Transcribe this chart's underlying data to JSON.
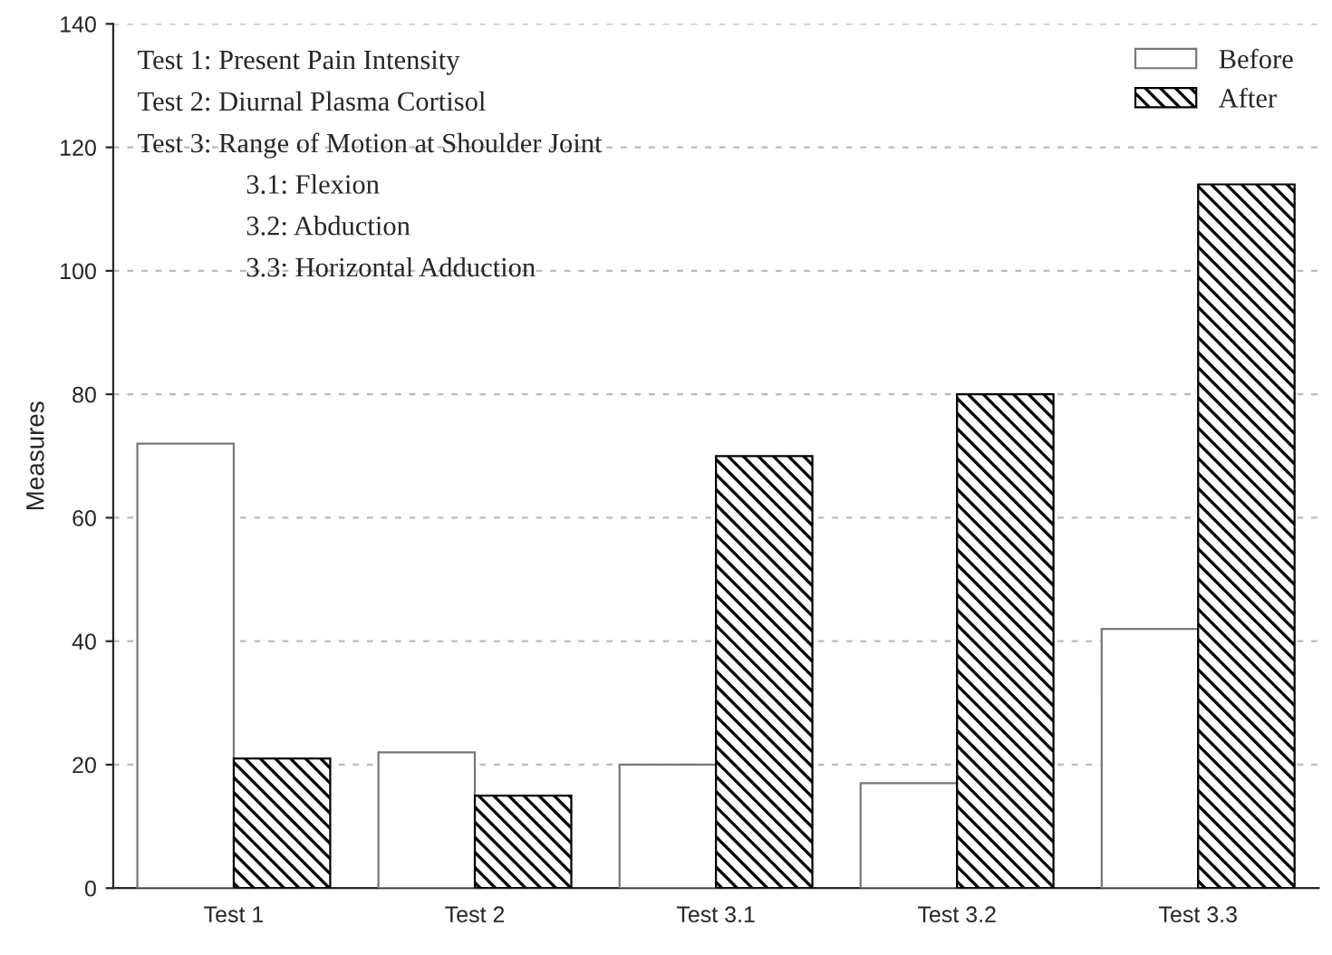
{
  "chart_data": {
    "type": "bar",
    "ylabel": "Measures",
    "categories": [
      "Test 1",
      "Test 2",
      "Test 3.1",
      "Test 3.2",
      "Test 3.3"
    ],
    "series": [
      {
        "name": "Before",
        "color": "#ffffff",
        "values": [
          72,
          22,
          20,
          17,
          42
        ]
      },
      {
        "name": "After",
        "color": "#000000",
        "values": [
          21,
          15,
          70,
          80,
          114
        ]
      }
    ],
    "ylim": [
      0,
      140
    ],
    "yticks": [
      0,
      20,
      40,
      60,
      80,
      100,
      120,
      140
    ],
    "grid": "y",
    "legend": "top right",
    "annotations": [
      "Test 1: Present Pain Intensity",
      "Test 2: Diurnal Plasma Cortisol",
      "Test 3: Range of Motion at Shoulder Joint",
      "3.1: Flexion",
      "3.2: Abduction",
      "3.3: Horizontal Adduction"
    ]
  }
}
